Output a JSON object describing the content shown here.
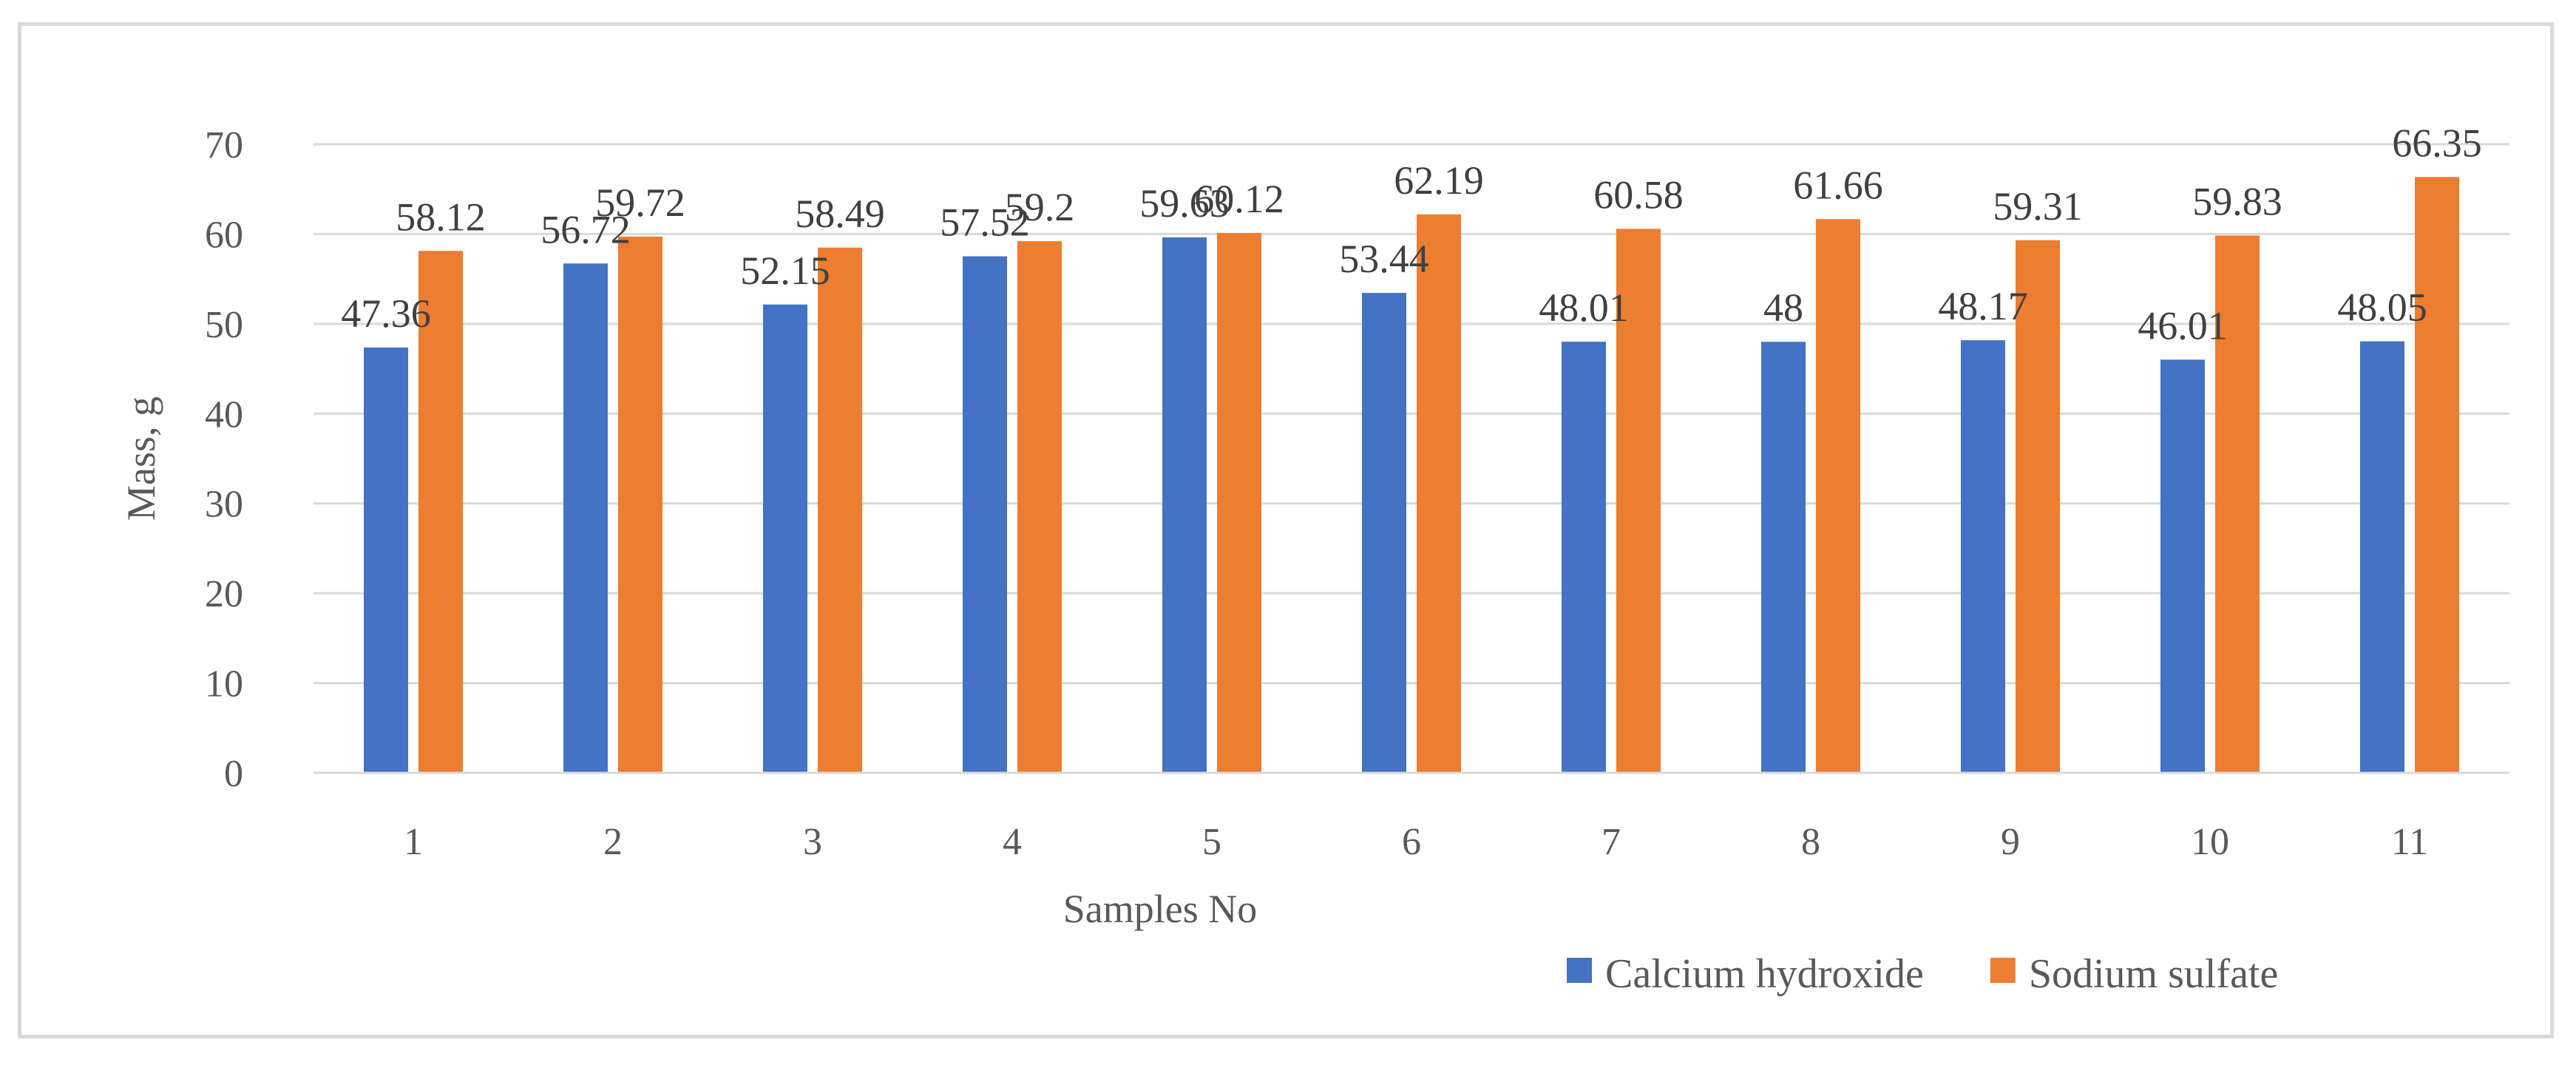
{
  "chart_data": {
    "type": "bar",
    "title": "",
    "xlabel": "Samples No",
    "ylabel": "Mass, g",
    "ylim": [
      0,
      70
    ],
    "yticks": [
      0,
      10,
      20,
      30,
      40,
      50,
      60,
      70
    ],
    "grid": true,
    "legend_position": "bottom-right",
    "categories": [
      "1",
      "2",
      "3",
      "4",
      "5",
      "6",
      "7",
      "8",
      "9",
      "10",
      "11"
    ],
    "series": [
      {
        "name": "Calcium hydroxide",
        "color": "#4472c4",
        "values": [
          47.36,
          56.72,
          52.15,
          57.52,
          59.63,
          53.44,
          48.01,
          48,
          48.17,
          46.01,
          48.05
        ],
        "labels": [
          "47.36",
          "56.72",
          "52.15",
          "57.52",
          "59.63",
          "53.44",
          "48.01",
          "48",
          "48.17",
          "46.01",
          "48.05"
        ]
      },
      {
        "name": "Sodium sulfate",
        "color": "#ed7d31",
        "values": [
          58.12,
          59.72,
          58.49,
          59.2,
          60.12,
          62.19,
          60.58,
          61.66,
          59.31,
          59.83,
          66.35
        ],
        "labels": [
          "58.12",
          "59.72",
          "58.49",
          "59.2",
          "60.12",
          "62.19",
          "60.58",
          "61.66",
          "59.31",
          "59.83",
          "66.35"
        ]
      }
    ]
  }
}
